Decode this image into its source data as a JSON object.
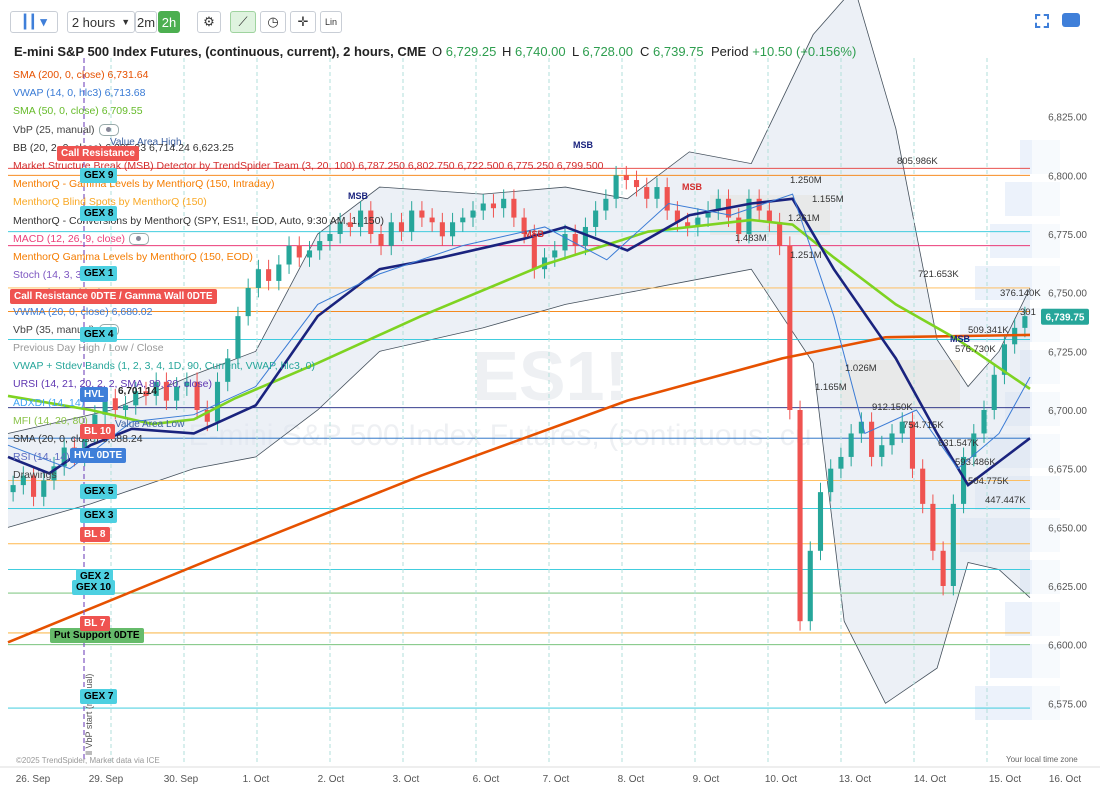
{
  "toolbar": {
    "interval_label": "2 hours",
    "btn_2m": "2m",
    "btn_2h": "2h",
    "lin_label": "Lin"
  },
  "header": {
    "title": "E-mini S&P 500 Index Futures, (continuous, current), 2 hours, CME",
    "o_label": "O",
    "o_value": "6,729.25",
    "h_label": "H",
    "h_value": "6,740.00",
    "l_label": "L",
    "l_value": "6,728.00",
    "c_label": "C",
    "c_value": "6,739.75",
    "period_label": "Period",
    "period_value": "+10.50 (+0.156%)"
  },
  "watermark": {
    "symbol": "ES1!",
    "name": "E-mini S&P 500 Index Futures, (continuous, cu"
  },
  "indicators": [
    {
      "text": "SMA (200, 0, close)  6,731.64",
      "color": "#e65100"
    },
    {
      "text": "VWAP (14, 0, hlc3)  6,713.68",
      "color": "#3a7bd5"
    },
    {
      "text": "SMA (50, 0, close)  6,709.55",
      "color": "#66bb2a"
    },
    {
      "text": "VbP (25, manual)",
      "color": "#444"
    },
    {
      "text": "BB (20, 2, 0, close)  6,805.23  6,714.24  6,623.25",
      "color": "#333"
    },
    {
      "text": "Market Structure Break (MSB) Detector by TrendSpider Team (3, 20, 100)  6,787.250  6,802.750  6,722.500  6,775.250  6,799.500",
      "color": "#d32f2f"
    },
    {
      "text": "MenthorQ - Gamma Levels by MenthorQ (150, Intraday)",
      "color": "#f57c00"
    },
    {
      "text": "MenthorQ Blind Spots by MenthorQ (150)",
      "color": "#f9a825"
    },
    {
      "text": "MenthorQ - Conversions by MenthorQ (SPY, ES1!, EOD, Auto, 9:30 AM, 1, 150)",
      "color": "#333"
    },
    {
      "text": "MACD (12, 26, 9, close)",
      "color": "#ec407a"
    },
    {
      "text": "MenthorQ Gamma Levels by MenthorQ (150, EOD)",
      "color": "#f57c00"
    },
    {
      "text": "Stoch (14, 3, 3)",
      "color": "#7e57c2"
    },
    {
      "text": "VWAP (14, 0, hlc3)  6,713.68",
      "color": "#3a7bd5"
    },
    {
      "text": "VWMA (20, 0, close)  6,680.02",
      "color": "#3a7bd5"
    },
    {
      "text": "VbP (35, manual)",
      "color": "#444"
    },
    {
      "text": "Previous Day High / Low / Close",
      "color": "#999"
    },
    {
      "text": "VWAP + Stdev Bands (1, 2, 3, 4, 1D, 90, Current, VWAP, hlc3, 0)",
      "color": "#26a69a"
    },
    {
      "text": "URSI (14, 21, 20, 2, 2, SMA, 80, 20, close)",
      "color": "#5e35b1"
    },
    {
      "text": "ADXDI (14, 14)",
      "color": "#42a5f5"
    },
    {
      "text": "MFI (14, 20, 80)",
      "color": "#8bc34a"
    },
    {
      "text": "SMA (20, 0, close)  6,688.24",
      "color": "#333"
    },
    {
      "text": "RSI (14, 14)",
      "color": "#5c6bc0"
    },
    {
      "text": "Drawings",
      "color": "#444"
    }
  ],
  "tags": [
    {
      "text": "Call Resistance",
      "bg": "#ef5350",
      "fg": "#ffffff"
    },
    {
      "text": "Call Resistance 0DTE / Gamma Wall 0DTE",
      "bg": "#ef5350",
      "fg": "#ffffff"
    },
    {
      "text": "Put Support 0DTE",
      "bg": "#66bb6a",
      "fg": "#000000"
    },
    {
      "text": "HVL",
      "bg": "#3f7fd9",
      "fg": "#ffffff"
    },
    {
      "text": "HVL 0DTE",
      "bg": "#3f7fd9",
      "fg": "#ffffff"
    },
    {
      "text": "GEX 9",
      "bg": "#4dd0e1",
      "fg": "#000000"
    },
    {
      "text": "GEX 8",
      "bg": "#4dd0e1",
      "fg": "#000000"
    },
    {
      "text": "GEX 1",
      "bg": "#4dd0e1",
      "fg": "#000000"
    },
    {
      "text": "GEX 4",
      "bg": "#4dd0e1",
      "fg": "#000000"
    },
    {
      "text": "GEX 5",
      "bg": "#4dd0e1",
      "fg": "#000000"
    },
    {
      "text": "GEX 3",
      "bg": "#4dd0e1",
      "fg": "#000000"
    },
    {
      "text": "GEX 2",
      "bg": "#4dd0e1",
      "fg": "#000000"
    },
    {
      "text": "GEX 10",
      "bg": "#4dd0e1",
      "fg": "#000000"
    },
    {
      "text": "GEX 7",
      "bg": "#4dd0e1",
      "fg": "#000000"
    },
    {
      "text": "BL 10",
      "bg": "#ef5350",
      "fg": "#ffffff"
    },
    {
      "text": "BL 8",
      "bg": "#ef5350",
      "fg": "#ffffff"
    },
    {
      "text": "BL 7",
      "bg": "#ef5350",
      "fg": "#ffffff"
    }
  ],
  "texts": {
    "value_area_high": "Value Area High",
    "value_area_low": "Value Area Low",
    "msb": "MSB",
    "hvl_value": "6,701.14",
    "copyright": "©2025 TrendSpider, Market data via ICE",
    "local_time": "Your local time zone",
    "vbp_vertical": "ll VbP start (manual)"
  },
  "volume_labels": [
    "805.986K",
    "1.250M",
    "1.155M",
    "1.261M",
    "1.483M",
    "1.251M",
    "721.653K",
    "376.140K",
    "509.341K",
    "576.730K",
    "1.026M",
    "1.165M",
    "912.150K",
    "754.715K",
    "631.547K",
    "593.486K",
    "504.775K",
    "447.447K",
    "301"
  ],
  "chart_data": {
    "type": "line",
    "title": "E-mini S&P 500 Index Futures, (continuous, current), 2 hours, CME",
    "x_ticks": [
      "26. Sep",
      "29. Sep",
      "30. Sep",
      "1. Oct",
      "2. Oct",
      "3. Oct",
      "6. Oct",
      "7. Oct",
      "8. Oct",
      "9. Oct",
      "10. Oct",
      "13. Oct",
      "14. Oct",
      "15. Oct",
      "16. Oct"
    ],
    "y_ticks": [
      6575,
      6600,
      6625,
      6650,
      6675,
      6700,
      6725,
      6750,
      6775,
      6800,
      6825
    ],
    "ylim": [
      6550,
      6850
    ],
    "last_price": "6,739.75",
    "grid": true,
    "price_close": [
      6668,
      6672,
      6663,
      6670,
      6676,
      6684,
      6680,
      6690,
      6698,
      6705,
      6700,
      6702,
      6708,
      6706,
      6712,
      6704,
      6710,
      6712,
      6700,
      6695,
      6712,
      6722,
      6740,
      6752,
      6760,
      6755,
      6762,
      6770,
      6765,
      6768,
      6772,
      6775,
      6780,
      6778,
      6785,
      6775,
      6770,
      6780,
      6776,
      6785,
      6782,
      6780,
      6774,
      6780,
      6782,
      6785,
      6788,
      6786,
      6790,
      6782,
      6775,
      6760,
      6765,
      6768,
      6775,
      6770,
      6778,
      6785,
      6790,
      6800,
      6798,
      6795,
      6790,
      6795,
      6785,
      6780,
      6778,
      6782,
      6785,
      6790,
      6782,
      6775,
      6790,
      6785,
      6780,
      6770,
      6700,
      6610,
      6640,
      6665,
      6675,
      6680,
      6690,
      6695,
      6680,
      6685,
      6690,
      6695,
      6675,
      6660,
      6640,
      6625,
      6660,
      6680,
      6690,
      6700,
      6715,
      6728,
      6735,
      6740
    ],
    "series": [
      {
        "name": "SMA (200, 0, close)",
        "color": "#e65100",
        "points": [
          [
            0,
            6601
          ],
          [
            20,
            6637
          ],
          [
            40,
            6672
          ],
          [
            60,
            6704
          ],
          [
            75,
            6722
          ],
          [
            85,
            6731
          ],
          [
            99,
            6732
          ]
        ]
      },
      {
        "name": "SMA (50, 0, close)",
        "color": "#7ed321",
        "points": [
          [
            0,
            6706
          ],
          [
            8,
            6700
          ],
          [
            14,
            6694
          ],
          [
            18,
            6696
          ],
          [
            22,
            6705
          ],
          [
            30,
            6720
          ],
          [
            40,
            6740
          ],
          [
            52,
            6762
          ],
          [
            62,
            6776
          ],
          [
            72,
            6781
          ],
          [
            76,
            6779
          ],
          [
            80,
            6765
          ],
          [
            86,
            6745
          ],
          [
            92,
            6730
          ],
          [
            99,
            6709
          ]
        ]
      },
      {
        "name": "SMA (20, 0, close)",
        "color": "#1a237e",
        "points": [
          [
            0,
            6680
          ],
          [
            4,
            6673
          ],
          [
            8,
            6685
          ],
          [
            12,
            6692
          ],
          [
            18,
            6690
          ],
          [
            24,
            6702
          ],
          [
            30,
            6740
          ],
          [
            36,
            6760
          ],
          [
            42,
            6765
          ],
          [
            50,
            6773
          ],
          [
            54,
            6778
          ],
          [
            60,
            6768
          ],
          [
            66,
            6783
          ],
          [
            72,
            6788
          ],
          [
            76,
            6790
          ],
          [
            80,
            6760
          ],
          [
            86,
            6722
          ],
          [
            90,
            6690
          ],
          [
            93,
            6668
          ],
          [
            96,
            6678
          ],
          [
            99,
            6688
          ]
        ]
      },
      {
        "name": "VWAP (14, 0, hlc3)",
        "color": "#3a7bd5",
        "points": [
          [
            0,
            6685
          ],
          [
            6,
            6675
          ],
          [
            12,
            6695
          ],
          [
            18,
            6698
          ],
          [
            24,
            6710
          ],
          [
            30,
            6745
          ],
          [
            36,
            6758
          ],
          [
            44,
            6770
          ],
          [
            52,
            6778
          ],
          [
            58,
            6764
          ],
          [
            64,
            6788
          ],
          [
            70,
            6783
          ],
          [
            76,
            6792
          ],
          [
            80,
            6740
          ],
          [
            83,
            6690
          ],
          [
            88,
            6700
          ],
          [
            92,
            6675
          ],
          [
            96,
            6690
          ],
          [
            99,
            6714
          ]
        ]
      }
    ]
  }
}
